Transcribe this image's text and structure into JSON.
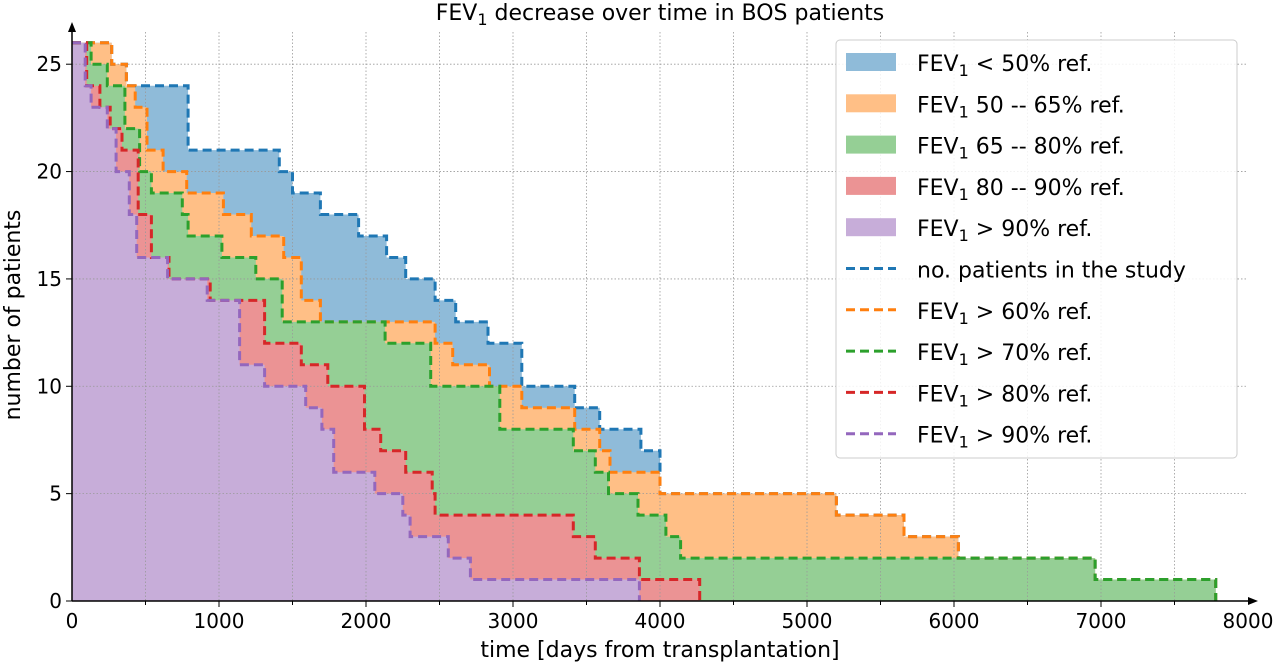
{
  "chart_data": {
    "type": "area",
    "step": "post",
    "title_parts": [
      "FEV",
      "1",
      " decrease over time in BOS patients"
    ],
    "xlabel": "time [days from transplantation]",
    "ylabel": "number of patients",
    "xlim": [
      0,
      8000
    ],
    "ylim": [
      0,
      26.5
    ],
    "xticks": [
      0,
      1000,
      2000,
      3000,
      4000,
      5000,
      6000,
      7000,
      8000
    ],
    "yticks": [
      0,
      5,
      10,
      15,
      20,
      25
    ],
    "grid": true,
    "legend_position": "top-right",
    "series": [
      {
        "key": "total",
        "color": "#1f77b4",
        "fill": "#8fbbd9",
        "legend_fill": [
          "FEV",
          "1",
          " < 50% ref."
        ],
        "legend_line": [
          "no. patients in the study"
        ],
        "x": [
          0,
          270,
          370,
          370,
          410,
          790,
          1020,
          1410,
          1500,
          1690,
          1950,
          2140,
          2270,
          2470,
          2610,
          2830,
          3060,
          3420,
          3590,
          3870,
          4000,
          5200,
          5660,
          6030,
          6960,
          7780
        ],
        "y": [
          26,
          25,
          24,
          24,
          24,
          21,
          21,
          20,
          19,
          18,
          17,
          16,
          15,
          14,
          13,
          12,
          10,
          9,
          8,
          7,
          5,
          4,
          3,
          2,
          1,
          0
        ]
      },
      {
        "key": "fev60",
        "color": "#ff7f0e",
        "fill": "#ffbf86",
        "legend_fill": [
          "FEV",
          "1",
          " 50 -- 65% ref."
        ],
        "legend_line": [
          "FEV",
          "1",
          " > 60% ref."
        ],
        "x": [
          0,
          270,
          370,
          430,
          510,
          620,
          780,
          1030,
          1220,
          1440,
          1560,
          1690,
          1780,
          2470,
          2590,
          2760,
          2840,
          3060,
          3420,
          3590,
          3660,
          4000,
          5200,
          5660,
          6030,
          6960,
          7780
        ],
        "y": [
          26,
          25,
          24,
          23,
          21,
          20,
          19,
          18,
          17,
          16,
          14,
          13,
          13,
          12,
          11,
          11,
          10,
          9,
          8,
          7,
          6,
          5,
          4,
          3,
          2,
          1,
          0
        ]
      },
      {
        "key": "fev70",
        "color": "#2ca02c",
        "fill": "#95cf95",
        "legend_fill": [
          "FEV",
          "1",
          " 65 -- 80% ref."
        ],
        "legend_line": [
          "FEV",
          "1",
          " > 70% ref."
        ],
        "x": [
          0,
          130,
          240,
          360,
          460,
          540,
          750,
          790,
          1020,
          1250,
          1430,
          1560,
          1670,
          1830,
          2130,
          2440,
          2910,
          3060,
          3410,
          3560,
          3650,
          3800,
          3850,
          4040,
          4140,
          4160,
          6030,
          6960,
          7780
        ],
        "y": [
          26,
          25,
          24,
          22,
          20,
          19,
          18,
          17,
          16,
          15,
          13,
          13,
          13,
          13,
          12,
          10,
          8,
          8,
          7,
          6,
          5,
          5,
          4,
          3,
          2,
          2,
          2,
          1,
          0
        ]
      },
      {
        "key": "fev80",
        "color": "#d62728",
        "fill": "#eb9394",
        "legend_fill": [
          "FEV",
          "1",
          " 80 -- 90% ref."
        ],
        "legend_line": [
          "FEV",
          "1",
          " > 80% ref."
        ],
        "x": [
          0,
          100,
          190,
          260,
          340,
          450,
          540,
          660,
          940,
          1310,
          1560,
          1740,
          1990,
          2100,
          2270,
          2450,
          2470,
          3410,
          3560,
          3860,
          4270
        ],
        "y": [
          26,
          24,
          23,
          22,
          21,
          18,
          16,
          15,
          14,
          12,
          11,
          10,
          8,
          7,
          6,
          5,
          4,
          3,
          2,
          1,
          0
        ]
      },
      {
        "key": "fev90",
        "color": "#9467bd",
        "fill": "#c7add9",
        "legend_fill": [
          "FEV",
          "1",
          " > 90% ref."
        ],
        "legend_line": [
          "FEV",
          "1",
          " > 90% ref."
        ],
        "x": [
          0,
          90,
          130,
          240,
          300,
          390,
          440,
          650,
          920,
          1140,
          1310,
          1590,
          1700,
          1780,
          2060,
          2250,
          2300,
          2560,
          2710,
          3110,
          3860
        ],
        "y": [
          26,
          24,
          23,
          22,
          20,
          18,
          16,
          15,
          14,
          11,
          10,
          9,
          8,
          6,
          5,
          4,
          3,
          2,
          1,
          1,
          0
        ]
      }
    ]
  }
}
